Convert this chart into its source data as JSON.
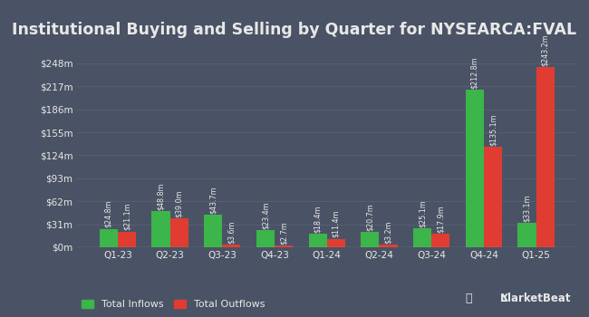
{
  "title": "Institutional Buying and Selling by Quarter for NYSEARCA:FVAL",
  "quarters": [
    "Q1-23",
    "Q2-23",
    "Q3-23",
    "Q4-23",
    "Q1-24",
    "Q2-24",
    "Q3-24",
    "Q4-24",
    "Q1-25"
  ],
  "inflows": [
    24.8,
    48.8,
    43.7,
    23.4,
    18.4,
    20.7,
    25.1,
    212.8,
    33.1
  ],
  "outflows": [
    21.1,
    39.0,
    3.6,
    2.7,
    11.4,
    3.2,
    17.9,
    135.1,
    243.2
  ],
  "inflow_labels": [
    "$24.8m",
    "$48.8m",
    "$43.7m",
    "$23.4m",
    "$18.4m",
    "$20.7m",
    "$25.1m",
    "$212.8m",
    "$33.1m"
  ],
  "outflow_labels": [
    "$21.1m",
    "$39.0m",
    "$3.6m",
    "$2.7m",
    "$11.4m",
    "$3.2m",
    "$17.9m",
    "$135.1m",
    "$243.2m"
  ],
  "inflow_color": "#3cb54a",
  "outflow_color": "#e03c31",
  "background_color": "#4a5365",
  "text_color": "#e8e8e8",
  "grid_color": "#5c6475",
  "ytick_labels": [
    "$0m",
    "$31m",
    "$62m",
    "$93m",
    "$124m",
    "$155m",
    "$186m",
    "$217m",
    "$248m"
  ],
  "ytick_values": [
    0,
    31,
    62,
    93,
    124,
    155,
    186,
    217,
    248
  ],
  "ylim": [
    0,
    265
  ],
  "bar_width": 0.35,
  "title_fontsize": 12.5,
  "tick_fontsize": 7.5,
  "label_fontsize": 5.8,
  "legend_fontsize": 8
}
